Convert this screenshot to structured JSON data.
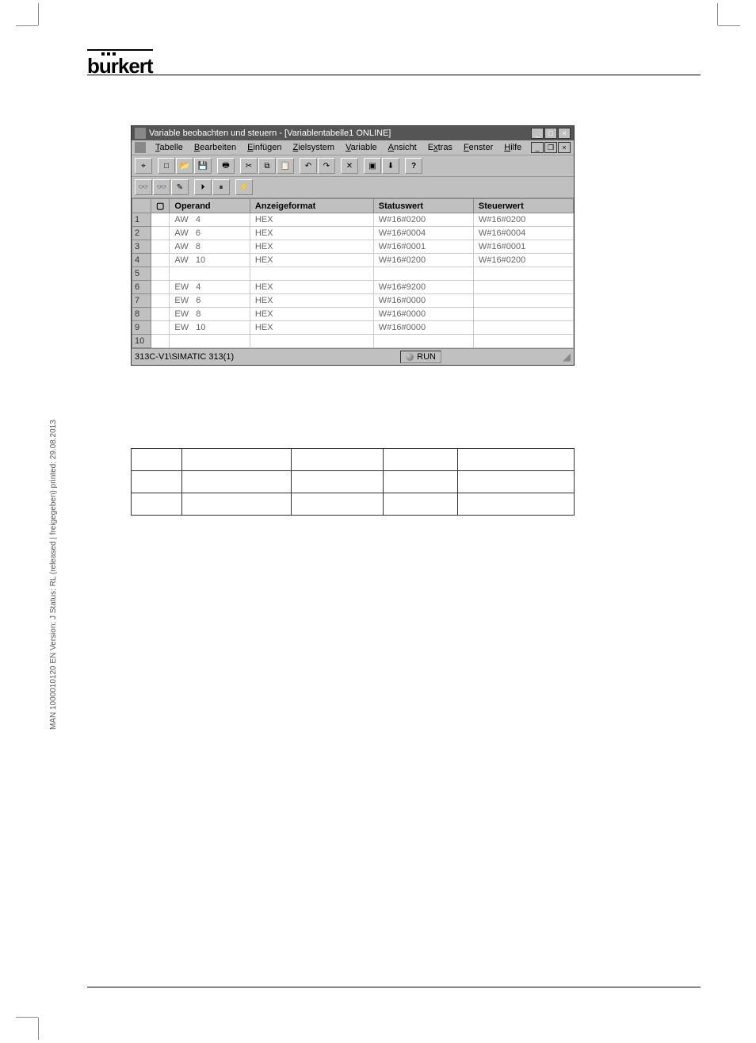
{
  "logo": {
    "text": "burkert"
  },
  "sideways": "MAN 1000010120 EN Version: J Status: RL (released | freigegeben) printed: 29.08.2013",
  "window": {
    "title": "Variable beobachten und steuern - [Variablentabelle1  ONLINE]",
    "menu": [
      "Tabelle",
      "Bearbeiten",
      "Einfügen",
      "Zielsystem",
      "Variable",
      "Ansicht",
      "Extras",
      "Fenster",
      "Hilfe"
    ],
    "headers": {
      "rownum": "",
      "chk": "",
      "operand": "Operand",
      "format": "Anzeigeformat",
      "status": "Statuswert",
      "steuer": "Steuerwert"
    },
    "rows": [
      {
        "n": "1",
        "op": "AW",
        "addr": "4",
        "fmt": "HEX",
        "stat": "W#16#0200",
        "steu": "W#16#0200"
      },
      {
        "n": "2",
        "op": "AW",
        "addr": "6",
        "fmt": "HEX",
        "stat": "W#16#0004",
        "steu": "W#16#0004"
      },
      {
        "n": "3",
        "op": "AW",
        "addr": "8",
        "fmt": "HEX",
        "stat": "W#16#0001",
        "steu": "W#16#0001"
      },
      {
        "n": "4",
        "op": "AW",
        "addr": "10",
        "fmt": "HEX",
        "stat": "W#16#0200",
        "steu": "W#16#0200"
      },
      {
        "n": "5",
        "op": "",
        "addr": "",
        "fmt": "",
        "stat": "",
        "steu": ""
      },
      {
        "n": "6",
        "op": "EW",
        "addr": "4",
        "fmt": "HEX",
        "stat": "W#16#9200",
        "steu": ""
      },
      {
        "n": "7",
        "op": "EW",
        "addr": "6",
        "fmt": "HEX",
        "stat": "W#16#0000",
        "steu": ""
      },
      {
        "n": "8",
        "op": "EW",
        "addr": "8",
        "fmt": "HEX",
        "stat": "W#16#0000",
        "steu": ""
      },
      {
        "n": "9",
        "op": "EW",
        "addr": "10",
        "fmt": "HEX",
        "stat": "W#16#0000",
        "steu": ""
      },
      {
        "n": "10",
        "op": "",
        "addr": "",
        "fmt": "",
        "stat": "",
        "steu": ""
      }
    ],
    "status_path": "313C-V1\\SIMATIC 313(1)",
    "status_run": "RUN"
  },
  "colors": {
    "win_bg": "#c0c0c0",
    "titlebar_bg": "#555555",
    "text_gray": "#666666"
  }
}
